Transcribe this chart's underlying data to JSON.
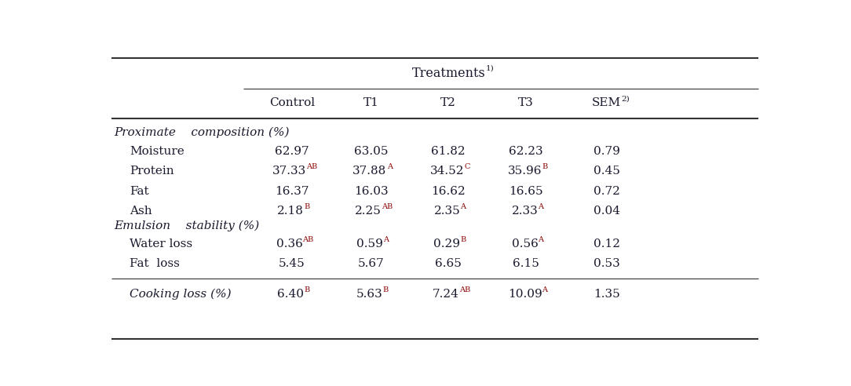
{
  "title": "Treatments",
  "title_sup": "1)",
  "col_headers": [
    "Control",
    "T1",
    "T2",
    "T3",
    "SEM"
  ],
  "col_headers_sup": [
    "",
    "",
    "",
    "",
    "2)"
  ],
  "section1_label": "Proximate    composition (%)",
  "section2_label": "Emulsion    stability (%)",
  "rows": [
    {
      "label": "Moisture",
      "italic": false,
      "values": [
        {
          "main": "62.97",
          "sup": ""
        },
        {
          "main": "63.05",
          "sup": ""
        },
        {
          "main": "61.82",
          "sup": ""
        },
        {
          "main": "62.23",
          "sup": ""
        },
        {
          "main": "0.79",
          "sup": ""
        }
      ]
    },
    {
      "label": "Protein",
      "italic": false,
      "values": [
        {
          "main": "37.33",
          "sup": "AB"
        },
        {
          "main": "37.88",
          "sup": "A"
        },
        {
          "main": "34.52",
          "sup": "C"
        },
        {
          "main": "35.96",
          "sup": "B"
        },
        {
          "main": "0.45",
          "sup": ""
        }
      ]
    },
    {
      "label": "Fat",
      "italic": false,
      "values": [
        {
          "main": "16.37",
          "sup": ""
        },
        {
          "main": "16.03",
          "sup": ""
        },
        {
          "main": "16.62",
          "sup": ""
        },
        {
          "main": "16.65",
          "sup": ""
        },
        {
          "main": "0.72",
          "sup": ""
        }
      ]
    },
    {
      "label": "Ash",
      "italic": false,
      "values": [
        {
          "main": "2.18",
          "sup": "B"
        },
        {
          "main": "2.25",
          "sup": "AB"
        },
        {
          "main": "2.35",
          "sup": "A"
        },
        {
          "main": "2.33",
          "sup": "A"
        },
        {
          "main": "0.04",
          "sup": ""
        }
      ]
    },
    {
      "label": "Water loss",
      "italic": false,
      "values": [
        {
          "main": "0.36",
          "sup": "AB"
        },
        {
          "main": "0.59",
          "sup": "A"
        },
        {
          "main": "0.29",
          "sup": "B"
        },
        {
          "main": "0.56",
          "sup": "A"
        },
        {
          "main": "0.12",
          "sup": ""
        }
      ]
    },
    {
      "label": "Fat  loss",
      "italic": false,
      "values": [
        {
          "main": "5.45",
          "sup": ""
        },
        {
          "main": "5.67",
          "sup": ""
        },
        {
          "main": "6.65",
          "sup": ""
        },
        {
          "main": "6.15",
          "sup": ""
        },
        {
          "main": "0.53",
          "sup": ""
        }
      ]
    },
    {
      "label": "Cooking loss (%)",
      "italic": true,
      "values": [
        {
          "main": "6.40",
          "sup": "B"
        },
        {
          "main": "5.63",
          "sup": "B"
        },
        {
          "main": "7.24",
          "sup": "AB"
        },
        {
          "main": "10.09",
          "sup": "A"
        },
        {
          "main": "1.35",
          "sup": ""
        }
      ]
    }
  ],
  "bg_color": "#ffffff",
  "text_color": "#1a1a2e",
  "sup_color": "#8b0000",
  "line_color": "#333333",
  "font_size": 11.0,
  "sup_font_size": 7.0,
  "header_font_size": 11.0
}
